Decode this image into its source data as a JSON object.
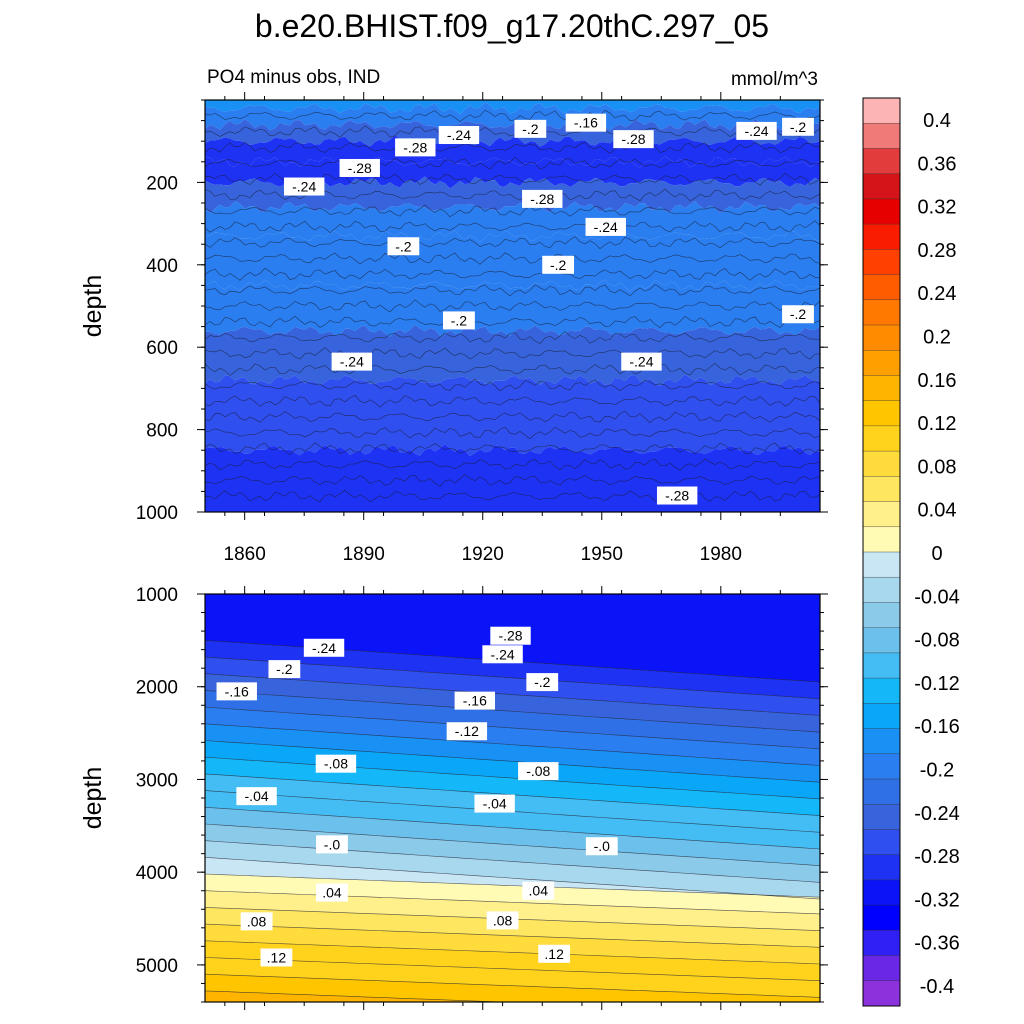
{
  "chart_data": [
    {
      "type": "contour",
      "panel": "top",
      "title": "b.e20.BHIST.f09_g17.20thC.297_05",
      "left_subtitle": "PO4 minus obs, IND",
      "right_subtitle": "mmol/m^3",
      "ylabel": "depth",
      "ylim": [
        0,
        1000
      ],
      "y_inverted": true,
      "xlim": [
        1850,
        2005
      ],
      "x_ticks": [
        1860,
        1890,
        1920,
        1950,
        1980
      ],
      "x_tick_labels": [
        "1860",
        "1890",
        "1920",
        "1950",
        "1980"
      ],
      "y_ticks": [
        200,
        400,
        600,
        800,
        1000
      ],
      "y_tick_labels": [
        "200",
        "400",
        "600",
        "800",
        "1000"
      ],
      "bands": [
        {
          "depth": 20,
          "value": -0.16
        },
        {
          "depth": 60,
          "value": -0.2
        },
        {
          "depth": 100,
          "value": -0.24
        },
        {
          "depth": 150,
          "value": -0.28
        },
        {
          "depth": 200,
          "value": -0.28
        },
        {
          "depth": 260,
          "value": -0.24
        },
        {
          "depth": 330,
          "value": -0.2
        },
        {
          "depth": 450,
          "value": -0.18
        },
        {
          "depth": 560,
          "value": -0.2
        },
        {
          "depth": 680,
          "value": -0.24
        },
        {
          "depth": 850,
          "value": -0.26
        },
        {
          "depth": 1000,
          "value": -0.28
        }
      ],
      "contour_labels": [
        {
          "year": 1932,
          "depth": 70,
          "text": "-.2"
        },
        {
          "year": 1946,
          "depth": 55,
          "text": "-.16"
        },
        {
          "year": 1914,
          "depth": 85,
          "text": "-.24"
        },
        {
          "year": 1958,
          "depth": 95,
          "text": "-.28"
        },
        {
          "year": 1989,
          "depth": 75,
          "text": "-.24"
        },
        {
          "year": 2003,
          "depth": 65,
          "text": "-.2"
        },
        {
          "year": 1903,
          "depth": 115,
          "text": "-.28"
        },
        {
          "year": 1889,
          "depth": 165,
          "text": "-.28"
        },
        {
          "year": 1935,
          "depth": 240,
          "text": "-.28"
        },
        {
          "year": 1875,
          "depth": 210,
          "text": "-.24"
        },
        {
          "year": 1951,
          "depth": 308,
          "text": "-.24"
        },
        {
          "year": 1900,
          "depth": 355,
          "text": "-.2"
        },
        {
          "year": 1939,
          "depth": 400,
          "text": "-.2"
        },
        {
          "year": 1914,
          "depth": 535,
          "text": "-.2"
        },
        {
          "year": 2010,
          "depth": 520,
          "text": "-.2"
        },
        {
          "year": 1887,
          "depth": 635,
          "text": "-.24"
        },
        {
          "year": 1960,
          "depth": 635,
          "text": "-.24"
        },
        {
          "year": 1969,
          "depth": 960,
          "text": "-.28"
        }
      ]
    },
    {
      "type": "contour",
      "panel": "bottom",
      "ylabel": "depth",
      "ylim": [
        1000,
        5400
      ],
      "y_inverted": true,
      "xlim": [
        1850,
        2005
      ],
      "y_ticks": [
        1000,
        2000,
        3000,
        4000,
        5000
      ],
      "y_tick_labels": [
        "1000",
        "2000",
        "3000",
        "4000",
        "5000"
      ],
      "contour_labels": [
        {
          "year": 1927,
          "depth": 1450,
          "text": "-.28"
        },
        {
          "year": 1880,
          "depth": 1580,
          "text": "-.24"
        },
        {
          "year": 1925,
          "depth": 1650,
          "text": "-.24"
        },
        {
          "year": 1870,
          "depth": 1810,
          "text": "-.2"
        },
        {
          "year": 1935,
          "depth": 1950,
          "text": "-.2"
        },
        {
          "year": 1858,
          "depth": 2050,
          "text": "-.16"
        },
        {
          "year": 1918,
          "depth": 2150,
          "text": "-.16"
        },
        {
          "year": 1916,
          "depth": 2480,
          "text": "-.12"
        },
        {
          "year": 1883,
          "depth": 2830,
          "text": "-.08"
        },
        {
          "year": 1934,
          "depth": 2910,
          "text": "-.08"
        },
        {
          "year": 1863,
          "depth": 3180,
          "text": "-.04"
        },
        {
          "year": 1923,
          "depth": 3260,
          "text": "-.04"
        },
        {
          "year": 1882,
          "depth": 3700,
          "text": "-.0"
        },
        {
          "year": 1950,
          "depth": 3720,
          "text": "-.0"
        },
        {
          "year": 1882,
          "depth": 4220,
          "text": ".04"
        },
        {
          "year": 1934,
          "depth": 4200,
          "text": ".04"
        },
        {
          "year": 1863,
          "depth": 4530,
          "text": ".08"
        },
        {
          "year": 1925,
          "depth": 4520,
          "text": ".08"
        },
        {
          "year": 1868,
          "depth": 4920,
          "text": ".12"
        },
        {
          "year": 1938,
          "depth": 4880,
          "text": ".12"
        }
      ]
    },
    {
      "type": "colorbar",
      "levels": [
        "0.4",
        "0.36",
        "0.32",
        "0.28",
        "0.24",
        "0.2",
        "0.16",
        "0.12",
        "0.08",
        "0.04",
        "0",
        "-0.04",
        "-0.08",
        "-0.12",
        "-0.16",
        "-0.2",
        "-0.24",
        "-0.28",
        "-0.32",
        "-0.36",
        "-0.4"
      ],
      "colors": [
        "#fcb4b4",
        "#f07a78",
        "#e23c3c",
        "#d41418",
        "#e60000",
        "#fa1c00",
        "#ff4000",
        "#ff5c00",
        "#ff7800",
        "#ff8c00",
        "#ffa000",
        "#ffb400",
        "#ffc600",
        "#ffd21c",
        "#ffdc3c",
        "#ffe660",
        "#fff08c",
        "#fffab4",
        "#c8e6f4",
        "#a8d8ee",
        "#8ccaea",
        "#6cc0ec",
        "#44bcf4",
        "#14b8f8",
        "#0aa6f8",
        "#1890f4",
        "#2a7ef0",
        "#3070e6",
        "#3764dc",
        "#2f4fee",
        "#1e32f4",
        "#0a14f6",
        "#0000ff",
        "#3020f6",
        "#6a28e6",
        "#8c32dc"
      ]
    }
  ]
}
